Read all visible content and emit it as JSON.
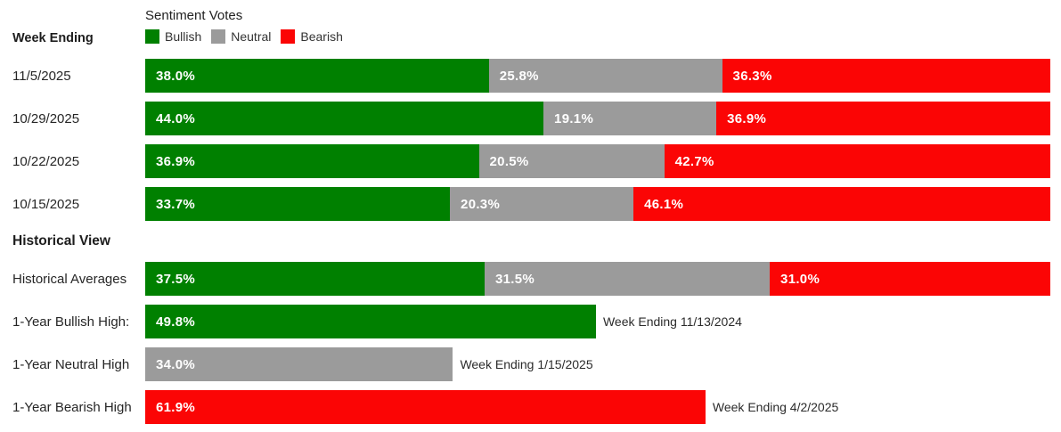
{
  "page": {
    "left_header": "Week Ending",
    "section_header": "Historical View",
    "chart_title": "Sentiment Votes",
    "legend": [
      {
        "label": "Bullish",
        "color": "#008000"
      },
      {
        "label": "Neutral",
        "color": "#9b9b9b"
      },
      {
        "label": "Bearish",
        "color": "#fb0505"
      }
    ]
  },
  "chart_data": {
    "type": "bar",
    "subtype": "horizontal-stacked-100pct",
    "title": "Sentiment Votes",
    "legend": [
      "Bullish",
      "Neutral",
      "Bearish"
    ],
    "legend_position": "top",
    "xlim": [
      0,
      100
    ],
    "grid": false,
    "value_format": "percent_one_decimal",
    "colors": {
      "bullish": "#008000",
      "neutral": "#9b9b9b",
      "bearish": "#fb0505"
    },
    "weekly_rows": [
      {
        "week_ending": "11/5/2025",
        "bullish": 38.0,
        "neutral": 25.8,
        "bearish": 36.3
      },
      {
        "week_ending": "10/29/2025",
        "bullish": 44.0,
        "neutral": 19.1,
        "bearish": 36.9
      },
      {
        "week_ending": "10/22/2025",
        "bullish": 36.9,
        "neutral": 20.5,
        "bearish": 42.7
      },
      {
        "week_ending": "10/15/2025",
        "bullish": 33.7,
        "neutral": 20.3,
        "bearish": 46.1
      }
    ],
    "historical": {
      "averages": {
        "label": "Historical Averages",
        "bullish": 37.5,
        "neutral": 31.5,
        "bearish": 31.0
      },
      "extremes": [
        {
          "label": "1-Year Bullish High:",
          "series": "bullish",
          "value": 49.8,
          "annotation": "Week Ending 11/13/2024"
        },
        {
          "label": "1-Year Neutral High",
          "series": "neutral",
          "value": 34.0,
          "annotation": "Week Ending 1/15/2025"
        },
        {
          "label": "1-Year Bearish High",
          "series": "bearish",
          "value": 61.9,
          "annotation": "Week Ending 4/2/2025"
        }
      ]
    }
  }
}
